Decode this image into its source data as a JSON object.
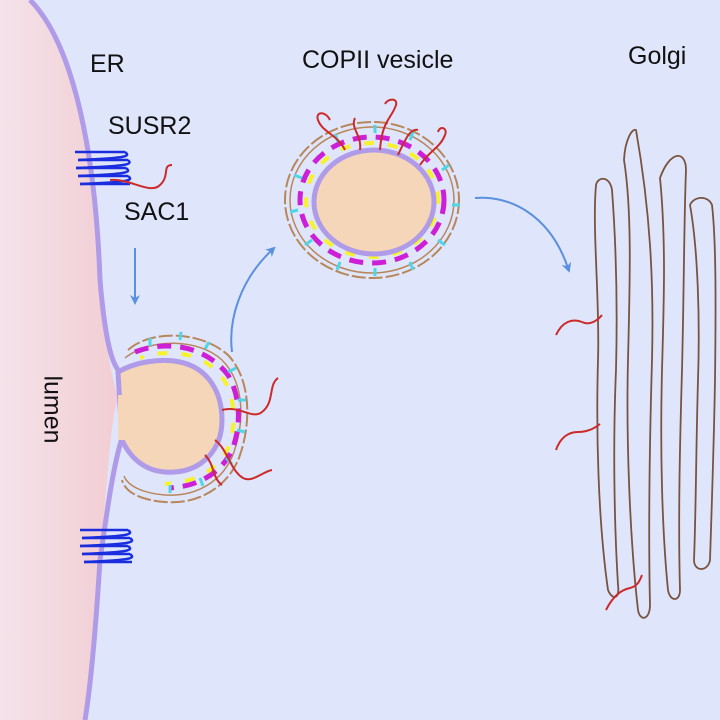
{
  "labels": {
    "er": "ER",
    "susr2": "SUSR2",
    "sac1": "SAC1",
    "copii": "COPII vesicle",
    "golgi": "Golgi",
    "lumen": "lumen"
  },
  "colors": {
    "background": "#dfe6fb",
    "er_lumen": "#f2cdd3",
    "membrane": "#b09be8",
    "vesicle_fill": "#f5d6b8",
    "coat_magenta": "#cc1fd6",
    "coat_yellow": "#f7f22a",
    "coat_cyan": "#4fd6e6",
    "coat_outer": "#b8865a",
    "cargo": "#cc2a2a",
    "sac1_helix": "#1a2ee0",
    "arrow": "#5b8fe0",
    "golgi_cisterna": "#7a5340"
  }
}
